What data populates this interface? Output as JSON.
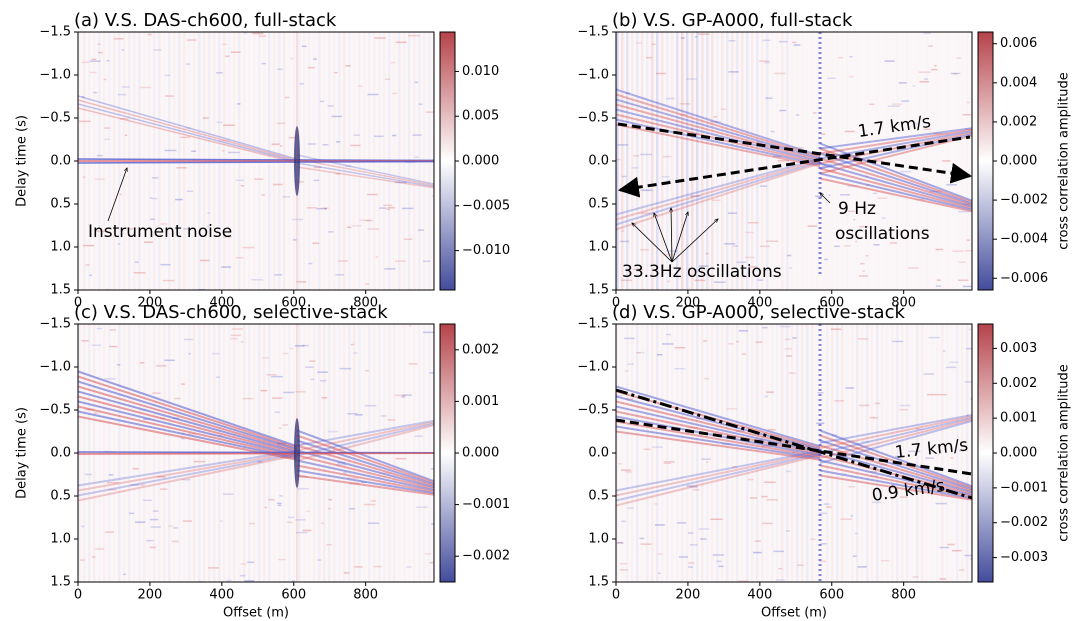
{
  "chart_data": [
    {
      "type": "heatmap",
      "title": "(a) V.S. DAS-ch600, full-stack",
      "ylabel": "Delay time (s)",
      "xlim": [
        0,
        990
      ],
      "ylim": [
        -1.5,
        1.5
      ],
      "invert_y": true,
      "xticks": [
        0,
        200,
        400,
        600,
        800
      ],
      "yticks": [
        {
          "value": -1.5,
          "label": "−1.5"
        },
        {
          "value": -1.0,
          "label": "−1.0"
        },
        {
          "value": -0.5,
          "label": "−0.5"
        },
        {
          "value": 0,
          "label": "0.0"
        },
        0.5,
        {
          "value": 1.0,
          "label": "1.0"
        },
        1.5
      ],
      "clim": [
        -0.0144,
        0.0144
      ],
      "cticks": [
        {
          "value": 0.01,
          "label": "0.010"
        },
        {
          "value": 0.005,
          "label": "0.005"
        },
        {
          "value": 0,
          "label": "0.000"
        },
        {
          "value": -0.005,
          "label": "−0.005"
        },
        {
          "value": -0.01,
          "label": "−0.010"
        }
      ],
      "colormap": [
        "#434c9c",
        "#ffffff",
        "#b5434a"
      ],
      "annotations": [
        "Instrument noise"
      ]
    },
    {
      "type": "heatmap",
      "title": "(b) V.S. GP-A000, full-stack",
      "colorbar_label": "cross correlation amplitude",
      "xlim": [
        0,
        990
      ],
      "ylim": [
        -1.5,
        1.5
      ],
      "invert_y": true,
      "xticks": [
        0,
        200,
        400,
        600,
        800
      ],
      "yticks": [
        {
          "value": -1.5,
          "label": "−1.5"
        },
        {
          "value": -1.0,
          "label": "−1.0"
        },
        {
          "value": -0.5,
          "label": "−0.5"
        },
        {
          "value": 0,
          "label": "0.0"
        },
        0.5,
        {
          "value": 1.0,
          "label": "1.0"
        },
        1.5
      ],
      "clim": [
        -0.0066,
        0.0066
      ],
      "cticks": [
        {
          "value": 0.006,
          "label": "0.006"
        },
        {
          "value": 0.004,
          "label": "0.004"
        },
        {
          "value": 0.002,
          "label": "0.002"
        },
        {
          "value": 0,
          "label": "0.000"
        },
        {
          "value": -0.002,
          "label": "−0.002"
        },
        {
          "value": -0.004,
          "label": "−0.004"
        },
        {
          "value": -0.006,
          "label": "−0.006"
        }
      ],
      "colormap": [
        "#434c9c",
        "#ffffff",
        "#b5434a"
      ],
      "annotations": [
        "1.7 km/s",
        "9 Hz",
        "oscillations",
        "33.3Hz oscillations"
      ]
    },
    {
      "type": "heatmap",
      "title": "(c) V.S. DAS-ch600, selective-stack",
      "xlabel": "Offset (m)",
      "ylabel": "Delay time (s)",
      "xlim": [
        0,
        990
      ],
      "ylim": [
        -1.5,
        1.5
      ],
      "invert_y": true,
      "xticks": [
        0,
        200,
        400,
        600,
        800
      ],
      "yticks": [
        {
          "value": -1.5,
          "label": "−1.5"
        },
        {
          "value": -1.0,
          "label": "−1.0"
        },
        {
          "value": -0.5,
          "label": "−0.5"
        },
        {
          "value": 0,
          "label": "0.0"
        },
        0.5,
        {
          "value": 1.0,
          "label": "1.0"
        },
        1.5
      ],
      "clim": [
        -0.0025,
        0.0025
      ],
      "cticks": [
        {
          "value": 0.002,
          "label": "0.002"
        },
        {
          "value": 0.001,
          "label": "0.001"
        },
        {
          "value": 0,
          "label": "0.000"
        },
        {
          "value": -0.001,
          "label": "−0.001"
        },
        {
          "value": -0.002,
          "label": "−0.002"
        }
      ],
      "colormap": [
        "#434c9c",
        "#ffffff",
        "#b5434a"
      ],
      "annotations": []
    },
    {
      "type": "heatmap",
      "title": "(d) V.S. GP-A000, selective-stack",
      "xlabel": "Offset (m)",
      "colorbar_label": "cross correlation amplitude",
      "xlim": [
        0,
        990
      ],
      "ylim": [
        -1.5,
        1.5
      ],
      "invert_y": true,
      "xticks": [
        0,
        200,
        400,
        600,
        800
      ],
      "yticks": [
        {
          "value": -1.5,
          "label": "−1.5"
        },
        {
          "value": -1.0,
          "label": "−1.0"
        },
        {
          "value": -0.5,
          "label": "−0.5"
        },
        {
          "value": 0,
          "label": "0.0"
        },
        0.5,
        {
          "value": 1.0,
          "label": "1.0"
        },
        1.5
      ],
      "clim": [
        -0.0037,
        0.0037
      ],
      "cticks": [
        {
          "value": 0.003,
          "label": "0.003"
        },
        {
          "value": 0.002,
          "label": "0.002"
        },
        {
          "value": 0.001,
          "label": "0.001"
        },
        {
          "value": 0,
          "label": "0.000"
        },
        {
          "value": -0.001,
          "label": "−0.001"
        },
        {
          "value": -0.002,
          "label": "−0.002"
        },
        {
          "value": -0.003,
          "label": "−0.003"
        }
      ],
      "colormap": [
        "#434c9c",
        "#ffffff",
        "#b5434a"
      ],
      "annotations": [
        "1.7 km/s",
        "0.9 km/s"
      ]
    }
  ]
}
